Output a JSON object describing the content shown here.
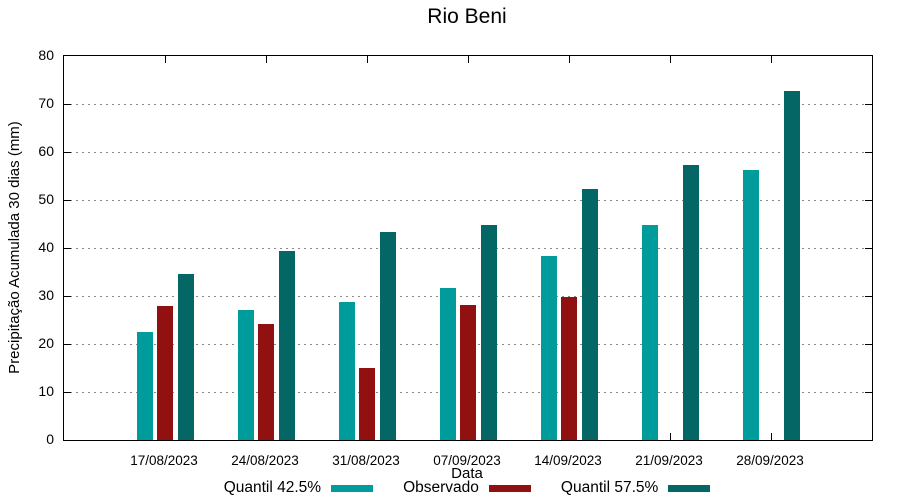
{
  "chart_data": {
    "type": "bar",
    "title": "Rio Beni",
    "xlabel": "Data",
    "ylabel": "Precipitação Acumulada 30 dias (mm)",
    "ylim": [
      0,
      80
    ],
    "yticks": [
      0,
      10,
      20,
      30,
      40,
      50,
      60,
      70,
      80
    ],
    "grid": true,
    "legend_position": "bottom",
    "categories": [
      "17/08/2023",
      "24/08/2023",
      "31/08/2023",
      "07/09/2023",
      "14/09/2023",
      "21/09/2023",
      "28/09/2023"
    ],
    "series": [
      {
        "name": "Quantil 42.5%",
        "color": "#009C9C",
        "values": [
          22.6,
          27.1,
          28.7,
          31.7,
          38.4,
          44.8,
          56.2
        ]
      },
      {
        "name": "Observado",
        "color": "#911010",
        "values": [
          28.0,
          24.2,
          14.9,
          28.1,
          29.8,
          null,
          null
        ]
      },
      {
        "name": "Quantil 57.5%",
        "color": "#056666",
        "values": [
          34.6,
          39.4,
          43.3,
          44.7,
          52.2,
          57.3,
          72.7
        ]
      }
    ]
  }
}
